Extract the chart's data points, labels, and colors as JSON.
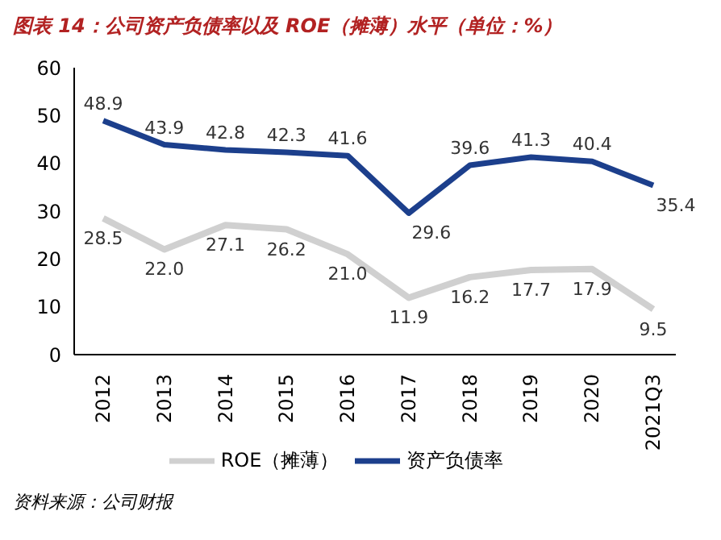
{
  "chart_data": {
    "type": "line",
    "title": "图表 14：公司资产负债率以及 ROE（摊薄）水平（单位：%）",
    "categories": [
      "2012",
      "2013",
      "2014",
      "2015",
      "2016",
      "2017",
      "2018",
      "2019",
      "2020",
      "2021Q3"
    ],
    "series": [
      {
        "name": "ROE（摊薄）",
        "color": "#d0d0d0",
        "values": [
          28.5,
          22.0,
          27.1,
          26.2,
          21.0,
          11.9,
          16.2,
          17.7,
          17.9,
          9.5
        ],
        "value_labels": [
          "28.5",
          "22.0",
          "27.1",
          "26.2",
          "21.0",
          "11.9",
          "16.2",
          "17.7",
          "17.9",
          "9.5"
        ]
      },
      {
        "name": "资产负债率",
        "color": "#1c3f8c",
        "values": [
          48.9,
          43.9,
          42.8,
          42.3,
          41.6,
          29.6,
          39.6,
          41.3,
          40.4,
          35.4
        ],
        "value_labels": [
          "48.9",
          "43.9",
          "42.8",
          "42.3",
          "41.6",
          "29.6",
          "39.6",
          "41.3",
          "40.4",
          "35.4"
        ]
      }
    ],
    "ylim": [
      0,
      60
    ],
    "yticks": [
      0,
      10,
      20,
      30,
      40,
      50,
      60
    ],
    "grid": false,
    "legend": "bottom",
    "marker": "none",
    "line_style": "solid",
    "annotations": [
      "资料来源：公司财报"
    ]
  }
}
